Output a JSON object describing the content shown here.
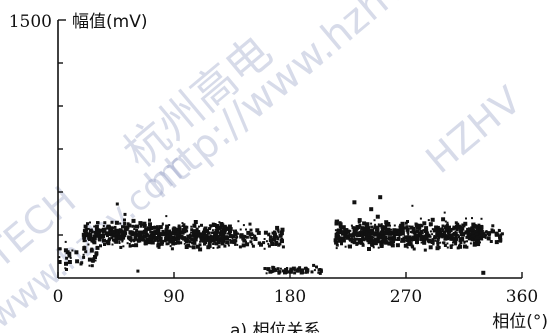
{
  "chart_data": {
    "type": "scatter",
    "title": "",
    "xlabel": "相位(°)",
    "ylabel": "幅值(mV)",
    "xlim": [
      0,
      360
    ],
    "ylim": [
      0,
      1500
    ],
    "x_ticks": [
      "0",
      "90",
      "180",
      "270",
      "360"
    ],
    "y_tick_top_label": "1500",
    "caption_fragment": "a) 相位关系",
    "watermark": [
      "杭州高电",
      "http://www.hzhv",
      "HZHV",
      "TECH",
      "www.hzhv.com"
    ],
    "clusters": [
      {
        "x_range": [
          20,
          130
        ],
        "y_center": 250,
        "y_spread": 100,
        "count": 620
      },
      {
        "x_range": [
          120,
          175
        ],
        "y_center": 235,
        "y_spread": 90,
        "count": 140
      },
      {
        "x_range": [
          215,
          330
        ],
        "y_center": 255,
        "y_spread": 110,
        "count": 650
      },
      {
        "x_range": [
          320,
          345
        ],
        "y_center": 250,
        "y_spread": 80,
        "count": 60
      },
      {
        "x_range": [
          160,
          205
        ],
        "y_center": 40,
        "y_spread": 35,
        "count": 60
      },
      {
        "x_range": [
          0,
          30
        ],
        "y_center": 120,
        "y_spread": 90,
        "count": 40
      }
    ],
    "outliers": [
      {
        "x": 46,
        "y": 430
      },
      {
        "x": 52,
        "y": 370
      },
      {
        "x": 84,
        "y": 360
      },
      {
        "x": 230,
        "y": 440
      },
      {
        "x": 250,
        "y": 470
      },
      {
        "x": 243,
        "y": 400
      },
      {
        "x": 275,
        "y": 420
      },
      {
        "x": 300,
        "y": 380
      },
      {
        "x": 62,
        "y": 40
      },
      {
        "x": 330,
        "y": 30
      },
      {
        "x": 140,
        "y": 330
      },
      {
        "x": 6,
        "y": 210
      }
    ]
  }
}
